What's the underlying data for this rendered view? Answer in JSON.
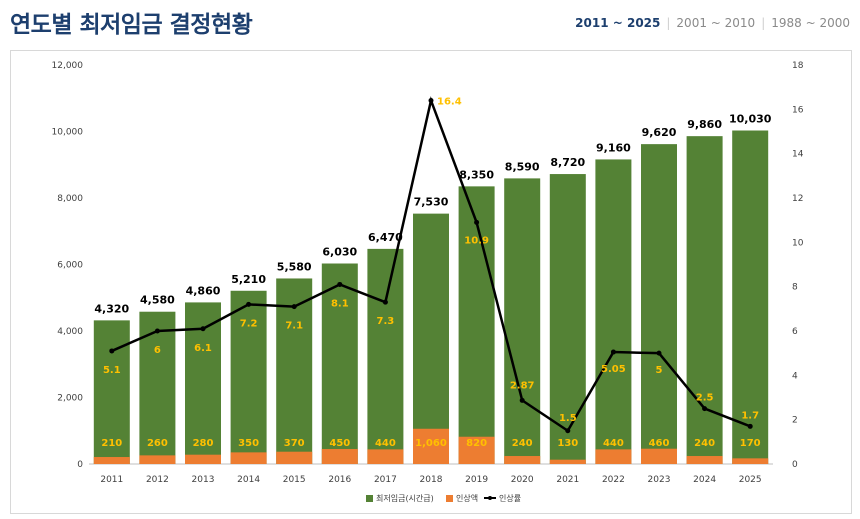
{
  "page": {
    "title": "연도별 최저임금 결정현황",
    "tabs": [
      {
        "label": "2011 ~ 2025",
        "active": true
      },
      {
        "label": "2001 ~ 2010",
        "active": false
      },
      {
        "label": "1988 ~ 2000",
        "active": false
      }
    ]
  },
  "chart_data": {
    "type": "bar",
    "categories": [
      "2011",
      "2012",
      "2013",
      "2014",
      "2015",
      "2016",
      "2017",
      "2018",
      "2019",
      "2020",
      "2021",
      "2022",
      "2023",
      "2024",
      "2025"
    ],
    "series": [
      {
        "name": "최저임금(시간급)",
        "type": "bar",
        "axis": "left",
        "color": "#548235",
        "values": [
          4320,
          4580,
          4860,
          5210,
          5580,
          6030,
          6470,
          7530,
          8350,
          8590,
          8720,
          9160,
          9620,
          9860,
          10030
        ],
        "labels": [
          "4,320",
          "4,580",
          "4,860",
          "5,210",
          "5,580",
          "6,030",
          "6,470",
          "7,530",
          "8,350",
          "8,590",
          "8,720",
          "9,160",
          "9,620",
          "9,860",
          "10,030"
        ]
      },
      {
        "name": "인상액",
        "type": "bar",
        "axis": "left",
        "color": "#ed7d31",
        "values": [
          210,
          260,
          280,
          350,
          370,
          450,
          440,
          1060,
          820,
          240,
          130,
          440,
          460,
          240,
          170
        ],
        "labels": [
          "210",
          "260",
          "280",
          "350",
          "370",
          "450",
          "440",
          "1,060",
          "820",
          "240",
          "130",
          "440",
          "460",
          "240",
          "170"
        ]
      },
      {
        "name": "인상률",
        "type": "line",
        "axis": "right",
        "color": "#000000",
        "values": [
          5.1,
          6,
          6.1,
          7.2,
          7.1,
          8.1,
          7.3,
          16.4,
          10.9,
          2.87,
          1.5,
          5.05,
          5,
          2.5,
          1.7
        ],
        "labels": [
          "5.1",
          "6",
          "6.1",
          "7.2",
          "7.1",
          "8.1",
          "7.3",
          "16.4",
          "10.9",
          "2.87",
          "1.5",
          "5.05",
          "5",
          "2.5",
          "1.7"
        ]
      }
    ],
    "y_left": {
      "min": 0,
      "max": 12000,
      "ticks": [
        "0",
        "2,000",
        "4,000",
        "6,000",
        "8,000",
        "10,000",
        "12,000"
      ]
    },
    "y_right": {
      "min": 0,
      "max": 18,
      "ticks": [
        "0",
        "2",
        "4",
        "6",
        "8",
        "10",
        "12",
        "14",
        "16",
        "18"
      ]
    },
    "legend_position": "bottom",
    "grid": false,
    "colors": {
      "wage": "#548235",
      "increase": "#ed7d31",
      "rate": "#000000",
      "rate_label": "#ffc000",
      "total_label": "#000000"
    }
  }
}
